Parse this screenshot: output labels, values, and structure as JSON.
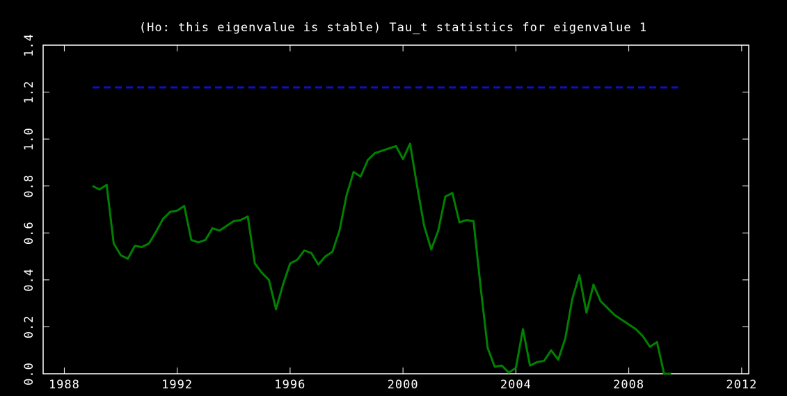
{
  "chart_data": {
    "type": "line",
    "title": "(Ho: this eigenvalue is stable) Tau_t statistics for eigenvalue 1",
    "x": [
      1989,
      1989.25,
      1989.5,
      1989.75,
      1990,
      1990.25,
      1990.5,
      1990.75,
      1991,
      1991.25,
      1991.5,
      1991.75,
      1992,
      1992.25,
      1992.5,
      1992.75,
      1993,
      1993.25,
      1993.5,
      1993.75,
      1994,
      1994.25,
      1994.5,
      1994.75,
      1995,
      1995.25,
      1995.5,
      1995.75,
      1996,
      1996.25,
      1996.5,
      1996.75,
      1997,
      1997.25,
      1997.5,
      1997.75,
      1998,
      1998.25,
      1998.5,
      1998.75,
      1999,
      1999.25,
      1999.5,
      1999.75,
      2000,
      2000.25,
      2000.5,
      2000.75,
      2001,
      2001.25,
      2001.5,
      2001.75,
      2002,
      2002.25,
      2002.5,
      2002.75,
      2003,
      2003.25,
      2003.5,
      2003.75,
      2004,
      2004.25,
      2004.5,
      2004.75,
      2005,
      2005.25,
      2005.5,
      2005.75,
      2006,
      2006.25,
      2006.5,
      2006.75,
      2007,
      2007.25,
      2007.5,
      2007.75,
      2008,
      2008.25,
      2008.5,
      2008.75,
      2009,
      2009.25,
      2009.5
    ],
    "series": [
      {
        "color": "#008000",
        "values": [
          0.8,
          0.785,
          0.805,
          0.555,
          0.505,
          0.49,
          0.545,
          0.54,
          0.555,
          0.605,
          0.66,
          0.69,
          0.695,
          0.715,
          0.57,
          0.56,
          0.57,
          0.62,
          0.61,
          0.63,
          0.65,
          0.655,
          0.67,
          0.47,
          0.43,
          0.4,
          0.275,
          0.38,
          0.47,
          0.485,
          0.525,
          0.515,
          0.465,
          0.5,
          0.52,
          0.61,
          0.76,
          0.86,
          0.84,
          0.91,
          0.94,
          0.95,
          0.96,
          0.97,
          0.915,
          0.98,
          0.8,
          0.63,
          0.53,
          0.61,
          0.755,
          0.77,
          0.645,
          0.655,
          0.65,
          0.37,
          0.11,
          0.03,
          0.035,
          0.005,
          0.025,
          0.19,
          0.035,
          0.05,
          0.055,
          0.1,
          0.06,
          0.15,
          0.32,
          0.42,
          0.26,
          0.38,
          0.31,
          0.28,
          0.25,
          0.23,
          0.21,
          0.19,
          0.16,
          0.115,
          0.135,
          0.0,
          0.0
        ]
      }
    ],
    "reference": {
      "value": 1.22,
      "from": 1989,
      "to": 2009.75,
      "color": "#1010c0",
      "dashed": true
    },
    "xlim": [
      1987.25,
      2012.25
    ],
    "xticks": [
      1988,
      1992,
      1996,
      2000,
      2004,
      2008,
      2012
    ],
    "ylim": [
      0,
      1.4
    ],
    "yticks": [
      {
        "value": 0,
        "label": "0.0"
      },
      0.2,
      0.4,
      0.6,
      0.8,
      {
        "value": 1,
        "label": "1.0"
      },
      1.2,
      1.4
    ],
    "grid": false
  }
}
